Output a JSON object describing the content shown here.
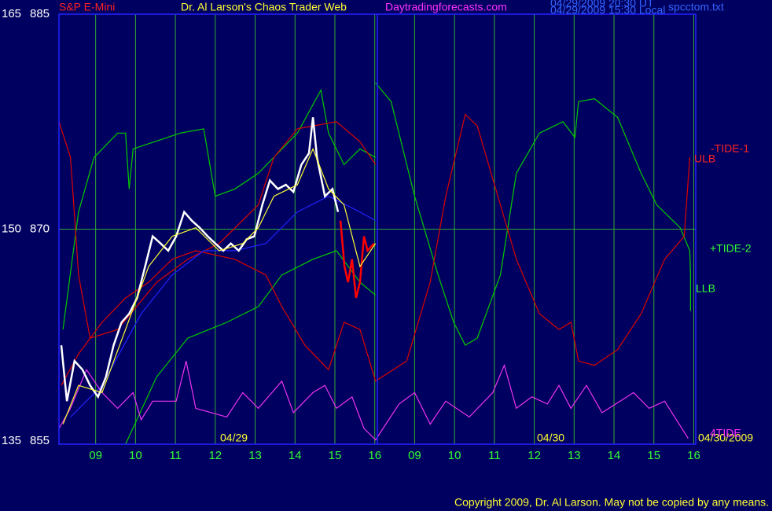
{
  "chart_data": {
    "type": "line",
    "title": "Dr. Al Larson's Chaos Trader Web",
    "annotations": [
      "S&P E-Mini",
      "Daytradingforecasts.com",
      "04/29/2009 20:30 UT",
      "04/29/2009 15:30 Local",
      "spcctom.txt",
      "04/29",
      "04/30",
      "04/30/2009",
      "-TIDE-1",
      "ULB",
      "+TIDE-2",
      "LLB",
      "4TIDE",
      "Copyright 2009, Dr. Al Larson. May not be copied by any means."
    ],
    "xlim": [
      8.08,
      24.05
    ],
    "xticks": [
      {
        "value": 9,
        "label": "09"
      },
      10,
      11,
      12,
      13,
      14,
      15,
      16,
      {
        "value": 17,
        "label": "09"
      },
      {
        "value": 18,
        "label": "10"
      },
      {
        "value": 19,
        "label": "11"
      },
      {
        "value": 20,
        "label": "12"
      },
      {
        "value": 21,
        "label": "13"
      },
      {
        "value": 22,
        "label": "14"
      },
      {
        "value": 23,
        "label": "15"
      },
      {
        "value": 24,
        "label": "16"
      }
    ],
    "ylim": [
      855,
      885
    ],
    "yticks": [
      855,
      870,
      885
    ],
    "y2lim": [
      135,
      165
    ],
    "y2ticks": [
      135,
      150,
      165
    ],
    "grid": true,
    "grid_color": "#33aa33",
    "series": [
      {
        "color": "#00cc00",
        "x": [
          8.18,
          8.57,
          8.96,
          9.55,
          9.75,
          9.84,
          9.94,
          11.12,
          11.71,
          12.0,
          12.49,
          13.08,
          14.06,
          14.65,
          14.84,
          15.23,
          15.63,
          16.02
        ],
        "values": [
          863.0,
          871.2,
          875.0,
          876.7,
          876.7,
          872.8,
          875.6,
          876.7,
          877.0,
          872.3,
          872.8,
          873.9,
          876.7,
          879.7,
          876.7,
          874.5,
          875.6,
          875.0
        ]
      },
      {
        "color": "#00cc00",
        "x": [
          16.02,
          16.41,
          17.0,
          17.59,
          17.98,
          18.27,
          18.57,
          19.15,
          19.55,
          20.13,
          20.72,
          21.02,
          21.11,
          21.51,
          22.09,
          22.68,
          23.07,
          23.66,
          23.9,
          23.92,
          23.92
        ],
        "values": [
          880.2,
          878.9,
          872.3,
          866.8,
          863.5,
          861.9,
          862.4,
          866.8,
          873.9,
          876.7,
          877.5,
          876.4,
          878.9,
          879.1,
          877.8,
          873.9,
          871.7,
          870.1,
          868.5,
          866.8,
          864.3
        ]
      },
      {
        "color": "#00cc00",
        "x": [
          9.75,
          10.53,
          11.31,
          12.29,
          13.08,
          13.67,
          14.45,
          15.04,
          15.63,
          16.02
        ],
        "values": [
          855.0,
          859.7,
          862.4,
          863.5,
          864.6,
          866.8,
          867.9,
          868.5,
          866.3,
          865.4
        ]
      },
      {
        "color": "#dd0000",
        "x": [
          8.08,
          8.37,
          8.57,
          8.86,
          9.55,
          10.53,
          11.31,
          12.1,
          13.08,
          13.47,
          14.06,
          15.04,
          15.63,
          16.02
        ],
        "values": [
          877.5,
          875.0,
          866.8,
          862.4,
          863.0,
          866.3,
          867.9,
          869.0,
          871.7,
          875.0,
          877.0,
          877.5,
          876.1,
          874.5
        ]
      },
      {
        "color": "#dd0000",
        "x": [
          8.14,
          8.57,
          9.16,
          9.75,
          10.33,
          10.92,
          11.51,
          12.49,
          13.27,
          13.67,
          14.25,
          14.84,
          15.23,
          15.63,
          16.02,
          16.8,
          17.39,
          17.78,
          18.27,
          18.57,
          19.15,
          19.55,
          20.13,
          20.62,
          20.92,
          21.11,
          21.51,
          22.09,
          22.68,
          23.27,
          23.76,
          23.9
        ],
        "values": [
          859.1,
          861.3,
          863.5,
          865.2,
          866.3,
          867.9,
          868.5,
          867.9,
          866.8,
          864.6,
          861.9,
          860.2,
          863.5,
          863.0,
          859.4,
          860.8,
          866.3,
          872.3,
          878.0,
          877.2,
          871.7,
          867.9,
          864.1,
          863.0,
          863.5,
          860.8,
          860.5,
          861.6,
          864.1,
          867.9,
          869.5,
          875.0
        ]
      },
      {
        "color": "#2222ff",
        "x": [
          8.37,
          9.16,
          10.14,
          10.92,
          11.71,
          12.49,
          13.27,
          14.06,
          14.84,
          15.63,
          16.02
        ],
        "values": [
          856.9,
          859.1,
          864.1,
          866.8,
          868.5,
          868.5,
          869.0,
          871.2,
          872.3,
          871.2,
          870.6
        ]
      },
      {
        "color": "#ee33ee",
        "x": [
          8.08,
          8.37,
          8.77,
          9.16,
          9.55,
          9.94,
          10.14,
          10.43,
          11.02,
          11.27,
          11.51,
          12.29,
          12.69,
          13.08,
          13.67,
          13.96,
          14.45,
          14.75,
          15.04,
          15.43,
          15.73,
          16.02,
          16.61,
          17.0,
          17.39,
          17.78,
          18.37,
          18.96,
          19.25,
          19.55,
          19.94,
          20.33,
          20.62,
          20.92,
          21.31,
          21.7,
          22.49,
          22.88,
          23.27,
          23.86
        ],
        "values": [
          856.1,
          857.5,
          860.2,
          858.6,
          857.5,
          858.6,
          856.7,
          858.0,
          858.0,
          860.8,
          857.5,
          856.9,
          858.6,
          857.5,
          859.4,
          857.2,
          858.6,
          859.1,
          857.5,
          858.3,
          856.1,
          855.3,
          857.8,
          858.6,
          856.4,
          858.0,
          856.9,
          858.6,
          860.5,
          857.5,
          858.3,
          857.8,
          859.1,
          857.5,
          859.1,
          857.2,
          858.6,
          857.5,
          858.0,
          855.4
        ]
      },
      {
        "color": "#ffffff",
        "x": [
          8.14,
          8.28,
          8.47,
          8.67,
          8.86,
          9.06,
          9.26,
          9.45,
          9.65,
          9.84,
          10.04,
          10.24,
          10.43,
          10.63,
          10.82,
          11.02,
          11.22,
          11.41,
          11.61,
          11.81,
          12.0,
          12.2,
          12.39,
          12.59,
          12.79,
          12.98,
          13.18,
          13.37,
          13.57,
          13.77,
          13.96,
          14.16,
          14.35,
          14.45,
          14.55,
          14.75,
          14.94,
          15.08
        ],
        "values": [
          861.9,
          858.0,
          860.8,
          860.2,
          859.1,
          858.3,
          859.7,
          861.9,
          863.5,
          864.1,
          865.2,
          867.4,
          869.5,
          869.0,
          868.5,
          869.5,
          871.2,
          870.6,
          870.1,
          869.5,
          869.0,
          868.5,
          869.0,
          868.5,
          869.3,
          869.5,
          871.7,
          873.4,
          872.8,
          873.1,
          872.6,
          874.5,
          875.3,
          877.8,
          875.0,
          872.3,
          872.8,
          871.2
        ]
      },
      {
        "color": "#ff0000",
        "x": [
          15.14,
          15.24,
          15.33,
          15.43,
          15.53,
          15.63,
          15.73,
          15.82,
          15.98
        ],
        "values": [
          870.6,
          867.4,
          866.3,
          867.9,
          865.2,
          866.3,
          869.5,
          868.5,
          869.0
        ]
      },
      {
        "color": "#ffff33",
        "x": [
          8.18,
          8.57,
          9.16,
          9.75,
          10.33,
          10.92,
          11.51,
          12.1,
          12.69,
          13.08,
          13.47,
          14.06,
          14.45,
          14.84,
          15.23,
          15.63,
          16.02
        ],
        "values": [
          856.4,
          859.1,
          858.6,
          863.0,
          867.4,
          869.5,
          870.1,
          868.5,
          869.0,
          870.1,
          872.3,
          873.1,
          875.6,
          872.8,
          871.7,
          867.4,
          869.0
        ]
      }
    ]
  }
}
